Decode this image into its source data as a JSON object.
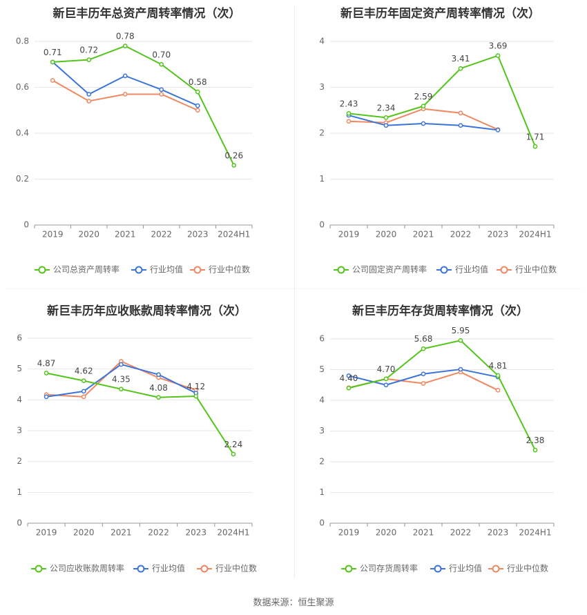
{
  "colors": {
    "company": "#52c41a",
    "avg": "#3a73d9",
    "median": "#f08760",
    "grid": "#e6e6e6",
    "axis": "#999999",
    "text": "#666666",
    "title": "#333333"
  },
  "legend": {
    "avg": "行业均值",
    "median": "行业中位数"
  },
  "source_text": "数据来源：恒生聚源",
  "chart_data": [
    {
      "type": "line",
      "title": "新巨丰历年总资产周转率情况（次）",
      "categories": [
        "2019",
        "2020",
        "2021",
        "2022",
        "2023",
        "2024H1"
      ],
      "yticks": [
        "0",
        "0.2",
        "0.4",
        "0.6",
        "0.8"
      ],
      "ylim": [
        0,
        0.8
      ],
      "legend_position": "bottom",
      "series": [
        {
          "name": "公司总资产周转率",
          "key": "company",
          "values": [
            0.71,
            0.72,
            0.78,
            0.7,
            0.58,
            0.26
          ],
          "labels": [
            "0.71",
            "0.72",
            "0.78",
            "0.70",
            "0.58",
            "0.26"
          ]
        },
        {
          "name": "行业均值",
          "key": "avg",
          "values": [
            0.71,
            0.57,
            0.65,
            0.59,
            0.52,
            null
          ]
        },
        {
          "name": "行业中位数",
          "key": "median",
          "values": [
            0.63,
            0.54,
            0.57,
            0.57,
            0.5,
            null
          ]
        }
      ]
    },
    {
      "type": "line",
      "title": "新巨丰历年固定资产周转率情况（次）",
      "categories": [
        "2019",
        "2020",
        "2021",
        "2022",
        "2023",
        "2024H1"
      ],
      "yticks": [
        "0",
        "1",
        "2",
        "3",
        "4"
      ],
      "ylim": [
        0,
        4
      ],
      "legend_position": "bottom",
      "series": [
        {
          "name": "公司固定资产周转率",
          "key": "company",
          "values": [
            2.43,
            2.34,
            2.59,
            3.41,
            3.69,
            1.71
          ],
          "labels": [
            "2.43",
            "2.34",
            "2.59",
            "3.41",
            "3.69",
            "1.71"
          ]
        },
        {
          "name": "行业均值",
          "key": "avg",
          "values": [
            2.39,
            2.17,
            2.21,
            2.17,
            2.07,
            null
          ]
        },
        {
          "name": "行业中位数",
          "key": "median",
          "values": [
            2.26,
            2.23,
            2.53,
            2.44,
            2.08,
            null
          ]
        }
      ]
    },
    {
      "type": "line",
      "title": "新巨丰历年应收账款周转率情况（次）",
      "categories": [
        "2019",
        "2020",
        "2021",
        "2022",
        "2023",
        "2024H1"
      ],
      "yticks": [
        "0",
        "1",
        "2",
        "3",
        "4",
        "5",
        "6"
      ],
      "ylim": [
        0,
        6
      ],
      "legend_position": "bottom",
      "series": [
        {
          "name": "公司应收账款周转率",
          "key": "company",
          "values": [
            4.87,
            4.62,
            4.35,
            4.08,
            4.12,
            2.24
          ],
          "labels": [
            "4.87",
            "4.62",
            "4.35",
            "4.08",
            "4.12",
            "2.24"
          ]
        },
        {
          "name": "行业均值",
          "key": "avg",
          "values": [
            4.1,
            4.28,
            5.15,
            4.82,
            4.22,
            null
          ]
        },
        {
          "name": "行业中位数",
          "key": "median",
          "values": [
            4.17,
            4.1,
            5.25,
            4.72,
            4.32,
            null
          ]
        }
      ]
    },
    {
      "type": "line",
      "title": "新巨丰历年存货周转率情况（次）",
      "categories": [
        "2019",
        "2020",
        "2021",
        "2022",
        "2023",
        "2024H1"
      ],
      "yticks": [
        "0",
        "1",
        "2",
        "3",
        "4",
        "5",
        "6"
      ],
      "ylim": [
        0,
        6
      ],
      "legend_position": "bottom",
      "series": [
        {
          "name": "公司存货周转率",
          "key": "company",
          "values": [
            4.4,
            4.7,
            5.68,
            5.95,
            4.81,
            2.38
          ],
          "labels": [
            "4.40",
            "4.70",
            "5.68",
            "5.95",
            "4.81",
            "2.38"
          ]
        },
        {
          "name": "行业均值",
          "key": "avg",
          "values": [
            4.8,
            4.5,
            4.86,
            5.01,
            4.76,
            null
          ]
        },
        {
          "name": "行业中位数",
          "key": "median",
          "values": [
            4.41,
            4.7,
            4.55,
            4.92,
            4.33,
            null
          ]
        }
      ]
    }
  ]
}
